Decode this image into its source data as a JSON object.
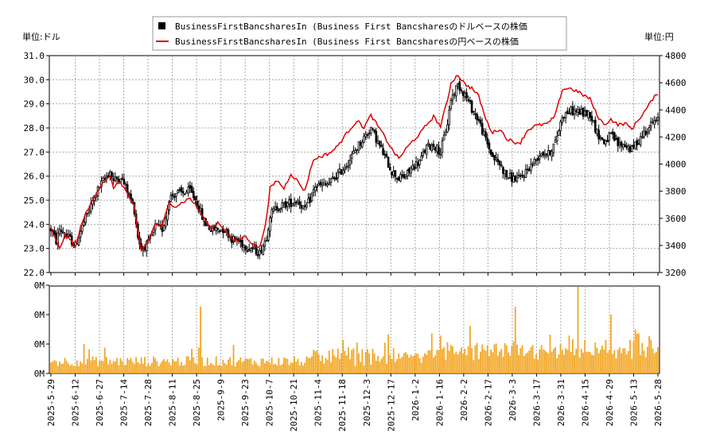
{
  "chart_data": {
    "type": "candlestick+line+bar",
    "legend": {
      "placement": "top-center",
      "entries": [
        {
          "name": "BusinessFirstBancsharesIn (Business First Bancsharesのドルベースの株価",
          "color": "#000000",
          "marker": "square"
        },
        {
          "name": "BusinessFirstBancsharesIn (Business First Bancsharesの円ベースの株価",
          "color": "#dd0000",
          "marker": "line"
        }
      ]
    },
    "left_unit_label": "単位:ドル",
    "right_unit_label": "単位:円",
    "y_left": {
      "min": 22.0,
      "max": 31.0,
      "ticks": [
        "22.0",
        "23.0",
        "24.0",
        "25.0",
        "26.0",
        "27.0",
        "28.0",
        "29.0",
        "30.0",
        "31.0"
      ]
    },
    "y_right": {
      "min": 3200,
      "max": 4800,
      "ticks": [
        "3200",
        "3400",
        "3600",
        "3800",
        "4000",
        "4200",
        "4400",
        "4600",
        "4800"
      ]
    },
    "volume_ticks": [
      "0M",
      "0M",
      "0M",
      "0M"
    ],
    "x_tick_labels": [
      "2025-5-29",
      "2025-6-12",
      "2025-6-27",
      "2025-7-14",
      "2025-7-28",
      "2025-8-11",
      "2025-8-25",
      "2025-9-9",
      "2025-9-23",
      "2025-10-7",
      "2025-10-21",
      "2025-11-4",
      "2025-11-18",
      "2025-12-3",
      "2025-12-17",
      "2026-1-2",
      "2026-1-16",
      "2026-2-2",
      "2026-2-17",
      "2026-3-3",
      "2026-3-17",
      "2026-3-31",
      "2026-4-15",
      "2026-4-29",
      "2026-5-13",
      "2026-5-28"
    ],
    "price_usd_anchors": [
      [
        0,
        23.8
      ],
      [
        3,
        23.3
      ],
      [
        5,
        23.8
      ],
      [
        8,
        23.6
      ],
      [
        12,
        23.3
      ],
      [
        14,
        23.1
      ],
      [
        18,
        23.9
      ],
      [
        22,
        24.6
      ],
      [
        26,
        25.3
      ],
      [
        30,
        25.8
      ],
      [
        34,
        26.2
      ],
      [
        36,
        25.8
      ],
      [
        40,
        26.0
      ],
      [
        44,
        25.4
      ],
      [
        48,
        24.6
      ],
      [
        50,
        23.5
      ],
      [
        52,
        23.0
      ],
      [
        56,
        23.2
      ],
      [
        60,
        23.9
      ],
      [
        64,
        23.8
      ],
      [
        66,
        24.3
      ],
      [
        68,
        25.1
      ],
      [
        72,
        25.3
      ],
      [
        76,
        25.3
      ],
      [
        80,
        25.4
      ],
      [
        84,
        24.9
      ],
      [
        88,
        24.1
      ],
      [
        92,
        23.8
      ],
      [
        96,
        23.8
      ],
      [
        100,
        23.8
      ],
      [
        104,
        23.4
      ],
      [
        108,
        23.3
      ],
      [
        112,
        23.1
      ],
      [
        116,
        23.0
      ],
      [
        120,
        22.8
      ],
      [
        124,
        23.5
      ],
      [
        126,
        24.4
      ],
      [
        130,
        24.7
      ],
      [
        134,
        24.8
      ],
      [
        138,
        24.9
      ],
      [
        142,
        25.0
      ],
      [
        146,
        24.6
      ],
      [
        150,
        25.2
      ],
      [
        152,
        25.6
      ],
      [
        156,
        25.6
      ],
      [
        160,
        25.7
      ],
      [
        164,
        26.0
      ],
      [
        168,
        26.3
      ],
      [
        172,
        26.7
      ],
      [
        176,
        27.2
      ],
      [
        180,
        27.6
      ],
      [
        184,
        28.0
      ],
      [
        188,
        27.4
      ],
      [
        192,
        26.8
      ],
      [
        196,
        26.2
      ],
      [
        200,
        25.9
      ],
      [
        204,
        26.0
      ],
      [
        208,
        26.4
      ],
      [
        212,
        26.6
      ],
      [
        216,
        27.2
      ],
      [
        220,
        27.3
      ],
      [
        224,
        27.0
      ],
      [
        228,
        28.2
      ],
      [
        230,
        29.2
      ],
      [
        234,
        29.8
      ],
      [
        238,
        29.4
      ],
      [
        242,
        28.8
      ],
      [
        246,
        28.3
      ],
      [
        250,
        27.5
      ],
      [
        254,
        26.8
      ],
      [
        258,
        26.5
      ],
      [
        262,
        26.0
      ],
      [
        266,
        25.9
      ],
      [
        270,
        25.9
      ],
      [
        274,
        26.3
      ],
      [
        278,
        26.6
      ],
      [
        282,
        27.0
      ],
      [
        286,
        26.9
      ],
      [
        290,
        27.4
      ],
      [
        294,
        28.5
      ],
      [
        298,
        28.7
      ],
      [
        302,
        28.7
      ],
      [
        306,
        28.6
      ],
      [
        310,
        28.6
      ],
      [
        314,
        27.8
      ],
      [
        318,
        27.4
      ],
      [
        322,
        27.7
      ],
      [
        326,
        27.3
      ],
      [
        330,
        27.3
      ],
      [
        334,
        27.1
      ],
      [
        338,
        27.5
      ],
      [
        342,
        27.9
      ],
      [
        346,
        28.2
      ],
      [
        349,
        28.3
      ]
    ],
    "price_jpy_anchors": [
      [
        0,
        3530
      ],
      [
        3,
        3430
      ],
      [
        5,
        3380
      ],
      [
        8,
        3470
      ],
      [
        12,
        3430
      ],
      [
        14,
        3380
      ],
      [
        18,
        3580
      ],
      [
        22,
        3680
      ],
      [
        26,
        3790
      ],
      [
        30,
        3870
      ],
      [
        34,
        3900
      ],
      [
        36,
        3830
      ],
      [
        40,
        3870
      ],
      [
        44,
        3780
      ],
      [
        48,
        3680
      ],
      [
        50,
        3490
      ],
      [
        52,
        3360
      ],
      [
        56,
        3430
      ],
      [
        60,
        3560
      ],
      [
        64,
        3540
      ],
      [
        66,
        3630
      ],
      [
        68,
        3710
      ],
      [
        72,
        3690
      ],
      [
        76,
        3720
      ],
      [
        80,
        3750
      ],
      [
        84,
        3680
      ],
      [
        88,
        3600
      ],
      [
        92,
        3520
      ],
      [
        96,
        3570
      ],
      [
        100,
        3520
      ],
      [
        104,
        3440
      ],
      [
        108,
        3440
      ],
      [
        112,
        3470
      ],
      [
        116,
        3410
      ],
      [
        120,
        3380
      ],
      [
        124,
        3600
      ],
      [
        126,
        3820
      ],
      [
        130,
        3880
      ],
      [
        134,
        3820
      ],
      [
        138,
        3930
      ],
      [
        142,
        3870
      ],
      [
        146,
        3800
      ],
      [
        150,
        4000
      ],
      [
        152,
        4040
      ],
      [
        156,
        4060
      ],
      [
        160,
        4080
      ],
      [
        164,
        4120
      ],
      [
        168,
        4190
      ],
      [
        172,
        4260
      ],
      [
        176,
        4320
      ],
      [
        180,
        4270
      ],
      [
        184,
        4360
      ],
      [
        188,
        4280
      ],
      [
        192,
        4200
      ],
      [
        196,
        4110
      ],
      [
        200,
        4040
      ],
      [
        204,
        4110
      ],
      [
        208,
        4170
      ],
      [
        212,
        4220
      ],
      [
        216,
        4290
      ],
      [
        220,
        4350
      ],
      [
        224,
        4280
      ],
      [
        228,
        4470
      ],
      [
        230,
        4600
      ],
      [
        234,
        4660
      ],
      [
        238,
        4590
      ],
      [
        242,
        4560
      ],
      [
        246,
        4500
      ],
      [
        250,
        4330
      ],
      [
        254,
        4230
      ],
      [
        258,
        4260
      ],
      [
        262,
        4190
      ],
      [
        266,
        4160
      ],
      [
        270,
        4160
      ],
      [
        274,
        4250
      ],
      [
        278,
        4280
      ],
      [
        282,
        4290
      ],
      [
        286,
        4300
      ],
      [
        290,
        4360
      ],
      [
        294,
        4550
      ],
      [
        298,
        4560
      ],
      [
        302,
        4540
      ],
      [
        306,
        4510
      ],
      [
        310,
        4480
      ],
      [
        314,
        4360
      ],
      [
        318,
        4290
      ],
      [
        322,
        4330
      ],
      [
        326,
        4290
      ],
      [
        330,
        4300
      ],
      [
        334,
        4260
      ],
      [
        338,
        4330
      ],
      [
        342,
        4400
      ],
      [
        346,
        4480
      ],
      [
        349,
        4520
      ]
    ],
    "num_days": 350
  }
}
